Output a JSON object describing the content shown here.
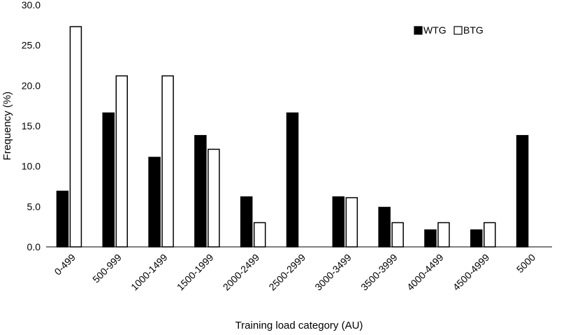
{
  "chart_data": {
    "type": "bar",
    "xlabel": "Training load category (AU)",
    "ylabel": "Frequency (%)",
    "ylim": [
      0,
      30
    ],
    "yticks": [
      "0.0",
      "5.0",
      "10.0",
      "15.0",
      "20.0",
      "25.0",
      "30.0"
    ],
    "grid": false,
    "legend_position": "top-right",
    "categories": [
      "0-499",
      "500-999",
      "1000-1499",
      "1500-1999",
      "2000-2499",
      "2500-2999",
      "3000-3499",
      "3500-3999",
      "4000-4499",
      "4500-4999",
      "5000"
    ],
    "series": [
      {
        "name": "WTG",
        "color": "#000000",
        "fill": "solid",
        "values": [
          6.9,
          16.6,
          11.1,
          13.8,
          6.2,
          16.6,
          6.2,
          4.9,
          2.1,
          2.1,
          13.8
        ]
      },
      {
        "name": "BTG",
        "color": "#ffffff",
        "fill": "outline",
        "values": [
          27.3,
          21.2,
          21.2,
          12.1,
          3.0,
          0,
          6.1,
          3.0,
          3.0,
          3.0,
          0
        ]
      }
    ]
  }
}
